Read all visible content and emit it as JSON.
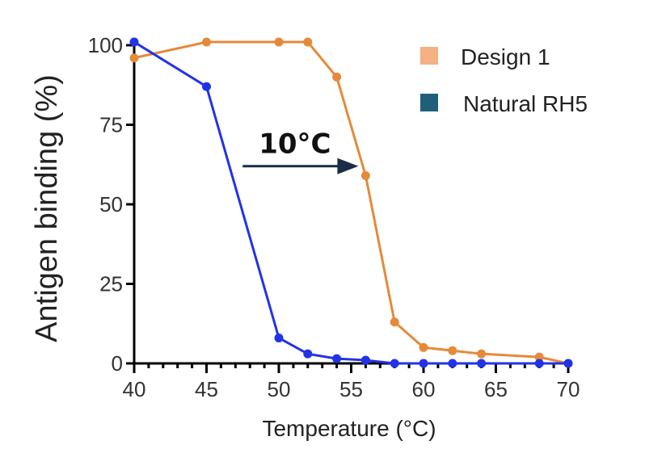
{
  "chart_data": {
    "type": "line",
    "xlabel": "Temperature (°C)",
    "ylabel": "Antigen binding (%)",
    "xlim": [
      40,
      70
    ],
    "ylim": [
      0,
      100
    ],
    "xticks": [
      40,
      45,
      50,
      55,
      60,
      65,
      70
    ],
    "yticks": [
      0,
      25,
      50,
      75,
      100
    ],
    "x_minor_tick_step": 1,
    "grid": false,
    "legend_position": "top-right",
    "series": [
      {
        "name": "Design 1",
        "color": "#e58a3a",
        "legend_color": "#f4b183",
        "x": [
          40,
          45,
          50,
          52,
          54,
          56,
          58,
          60,
          62,
          64,
          68,
          70
        ],
        "y": [
          96,
          101,
          101,
          101,
          90,
          59,
          13,
          5,
          4,
          3,
          2,
          0
        ]
      },
      {
        "name": "Natural RH5",
        "color": "#2233e6",
        "legend_color": "#1f5f7a",
        "x": [
          40,
          45,
          50,
          52,
          54,
          56,
          58,
          60,
          62,
          64,
          68,
          70
        ],
        "y": [
          101,
          87,
          8,
          3,
          1.5,
          1,
          0,
          0,
          0,
          0,
          0,
          0
        ]
      }
    ],
    "annotations": [
      {
        "text": "10°C",
        "arrow_from": {
          "x": 47.5,
          "y": 62
        },
        "arrow_to": {
          "x": 55.5,
          "y": 62
        }
      }
    ]
  }
}
